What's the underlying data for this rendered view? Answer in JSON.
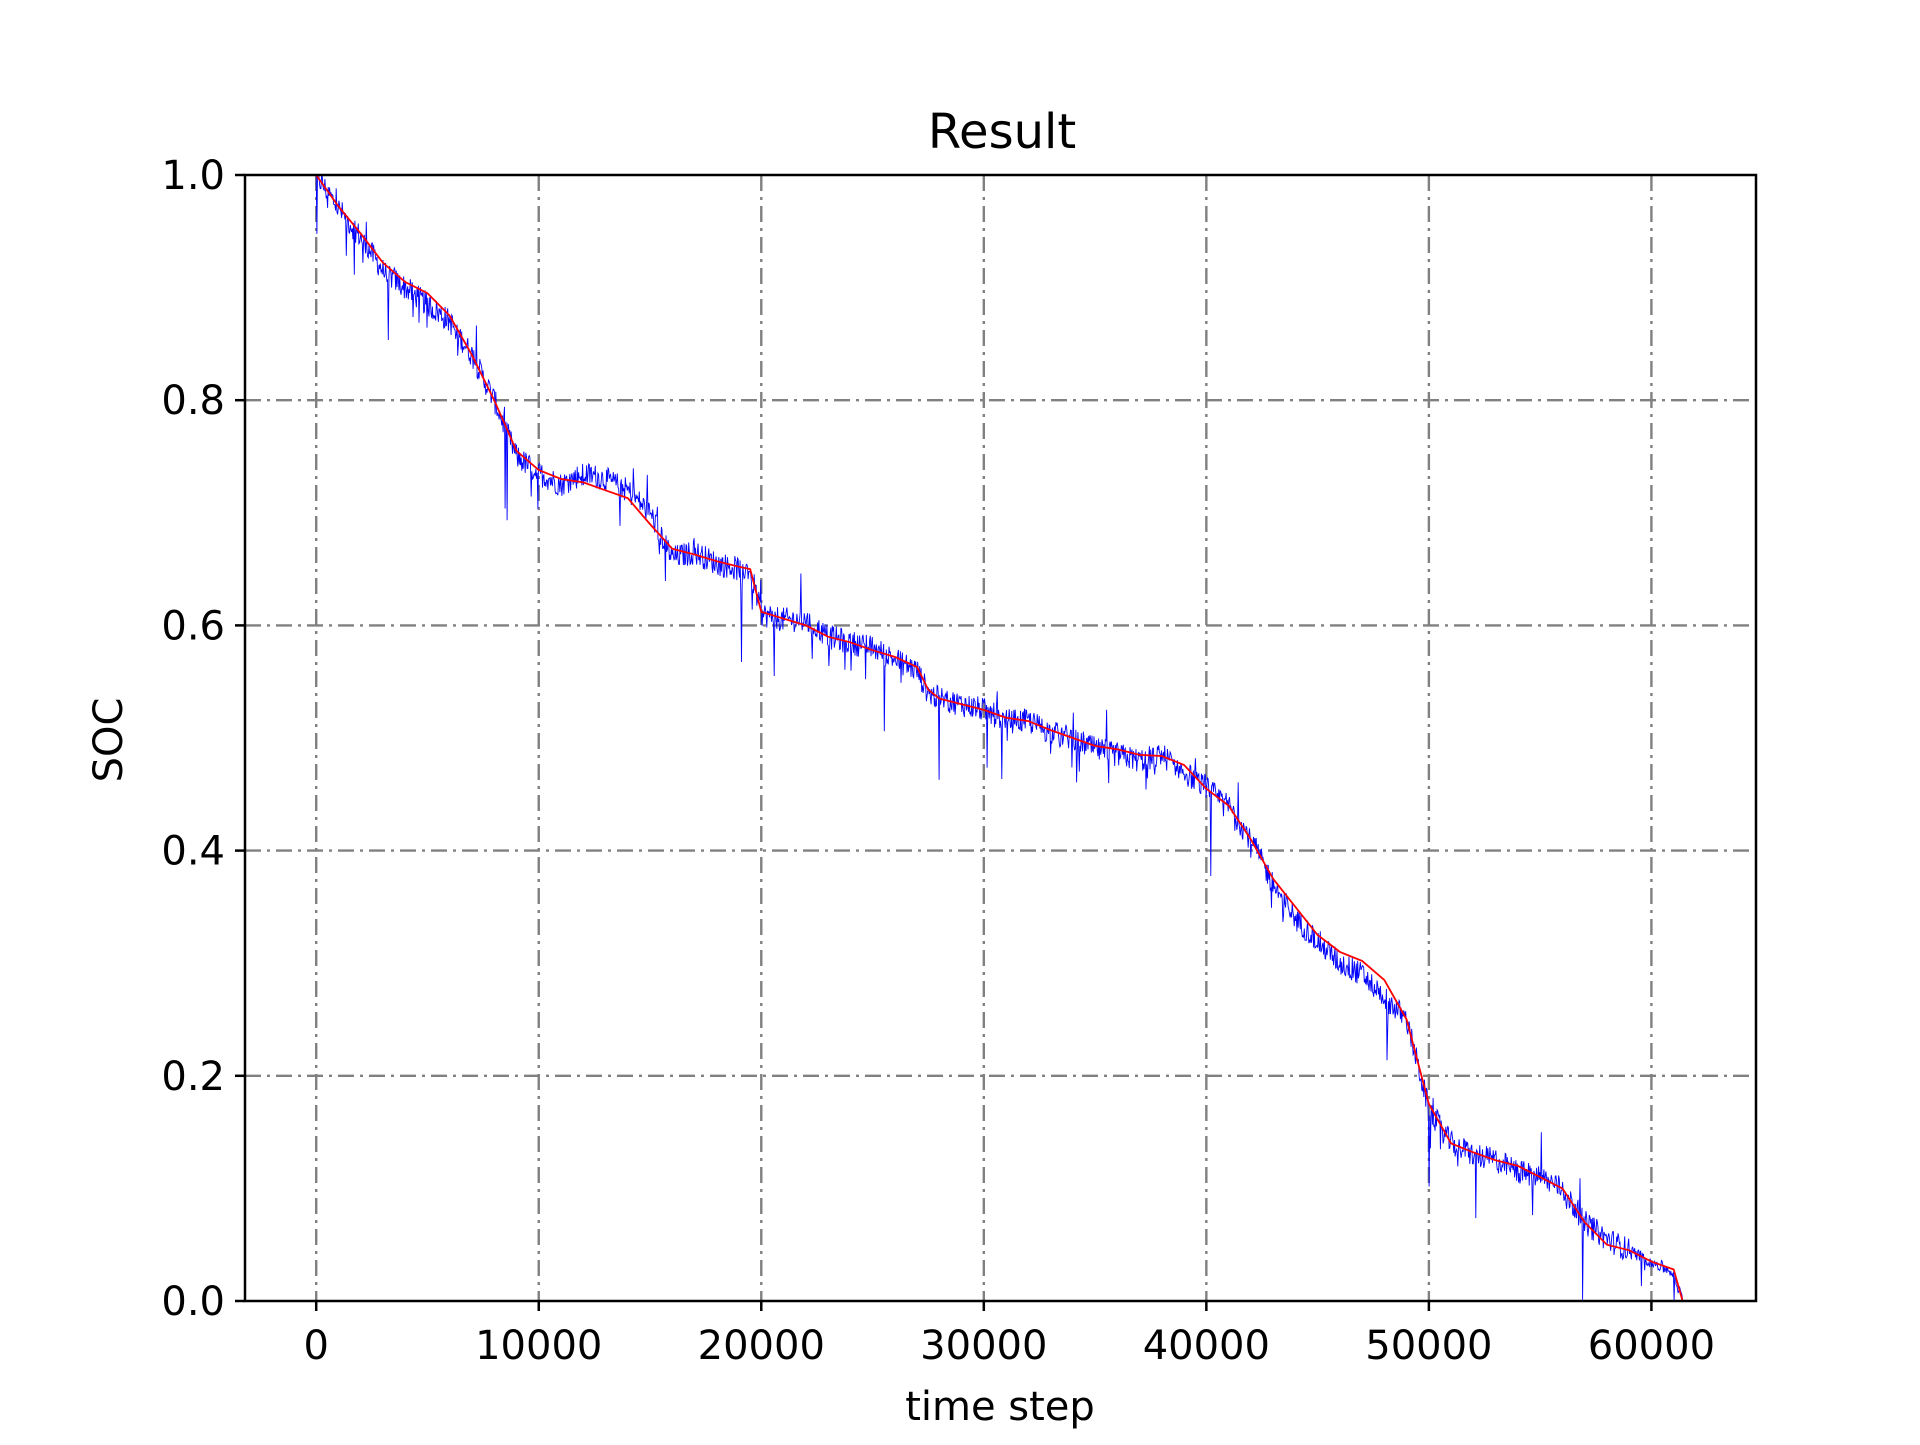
{
  "chart_data": {
    "type": "line",
    "title": "Result",
    "xlabel": "time step",
    "ylabel": "SOC",
    "xlim": [
      -3200,
      64700
    ],
    "ylim": [
      0.0,
      1.0
    ],
    "xticks": [
      0,
      10000,
      20000,
      30000,
      40000,
      50000,
      60000
    ],
    "xtick_labels": [
      "0",
      "10000",
      "20000",
      "30000",
      "40000",
      "50000",
      "60000"
    ],
    "yticks": [
      0.0,
      0.2,
      0.4,
      0.6,
      0.8,
      1.0
    ],
    "ytick_labels": [
      "0.0",
      "0.2",
      "0.4",
      "0.6",
      "0.8",
      "1.0"
    ],
    "grid": true,
    "legend": "none",
    "series": [
      {
        "color": "#0000ff",
        "x": [
          0,
          1000,
          2000,
          3000,
          4000,
          5000,
          6000,
          7000,
          8000,
          9000,
          10000,
          11000,
          12000,
          13000,
          14000,
          15000,
          16000,
          17000,
          18000,
          19000,
          19500,
          20000,
          21000,
          22000,
          23000,
          24000,
          25000,
          26000,
          27000,
          27500,
          28000,
          29000,
          30000,
          31000,
          32000,
          33000,
          34000,
          35000,
          36000,
          37000,
          38000,
          39000,
          40000,
          41000,
          42000,
          43000,
          44000,
          45000,
          46000,
          47000,
          48000,
          49000,
          50000,
          51000,
          52000,
          53000,
          54000,
          55000,
          56000,
          57000,
          58000,
          59000,
          60000,
          61000,
          61400
        ],
        "values": [
          1.0,
          0.97,
          0.945,
          0.915,
          0.9,
          0.885,
          0.87,
          0.84,
          0.8,
          0.75,
          0.735,
          0.725,
          0.735,
          0.73,
          0.72,
          0.7,
          0.66,
          0.665,
          0.655,
          0.65,
          0.65,
          0.61,
          0.605,
          0.605,
          0.59,
          0.585,
          0.58,
          0.57,
          0.56,
          0.54,
          0.535,
          0.53,
          0.525,
          0.515,
          0.515,
          0.505,
          0.5,
          0.49,
          0.485,
          0.48,
          0.485,
          0.47,
          0.455,
          0.44,
          0.41,
          0.37,
          0.34,
          0.32,
          0.3,
          0.29,
          0.27,
          0.25,
          0.17,
          0.14,
          0.13,
          0.125,
          0.115,
          0.11,
          0.1,
          0.07,
          0.055,
          0.045,
          0.035,
          0.025,
          0.0
        ],
        "noise_amplitude": 0.05
      },
      {
        "color": "#ff0000",
        "x": [
          0,
          1000,
          2000,
          3000,
          4000,
          5000,
          6000,
          7000,
          8000,
          9000,
          10000,
          11000,
          12000,
          13000,
          14000,
          15000,
          16000,
          17000,
          18000,
          19000,
          19500,
          20000,
          21000,
          22000,
          23000,
          24000,
          25000,
          26000,
          27000,
          27500,
          28000,
          29000,
          30000,
          31000,
          32000,
          33000,
          34000,
          35000,
          36000,
          37000,
          38000,
          39000,
          40000,
          41000,
          42000,
          43000,
          44000,
          45000,
          46000,
          47000,
          48000,
          49000,
          50000,
          51000,
          52000,
          53000,
          54000,
          55000,
          56000,
          57000,
          58000,
          59000,
          60000,
          61000,
          61400
        ],
        "values": [
          1.0,
          0.972,
          0.948,
          0.922,
          0.905,
          0.895,
          0.875,
          0.84,
          0.8,
          0.755,
          0.738,
          0.73,
          0.727,
          0.72,
          0.713,
          0.69,
          0.668,
          0.663,
          0.657,
          0.652,
          0.65,
          0.612,
          0.606,
          0.6,
          0.59,
          0.585,
          0.578,
          0.572,
          0.563,
          0.543,
          0.535,
          0.53,
          0.525,
          0.518,
          0.515,
          0.507,
          0.5,
          0.493,
          0.49,
          0.485,
          0.484,
          0.476,
          0.455,
          0.44,
          0.41,
          0.375,
          0.35,
          0.325,
          0.31,
          0.302,
          0.285,
          0.25,
          0.175,
          0.14,
          0.132,
          0.125,
          0.12,
          0.11,
          0.1,
          0.07,
          0.05,
          0.045,
          0.035,
          0.028,
          0.0
        ]
      }
    ]
  }
}
